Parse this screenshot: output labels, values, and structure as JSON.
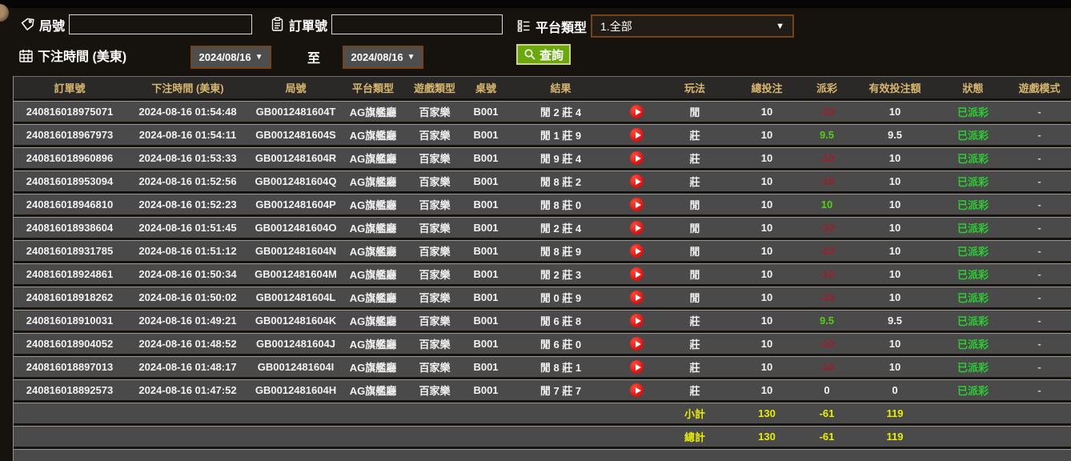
{
  "filters": {
    "round_label": "局號",
    "round_value": "",
    "order_label": "訂單號",
    "order_value": "",
    "platform_label": "平台類型",
    "platform_selected": "1.全部",
    "bet_time_label": "下注時間 (美東)",
    "date_from": "2024/08/16",
    "to_label": "至",
    "date_to": "2024/08/16",
    "search_label": "查詢"
  },
  "table": {
    "columns": [
      "訂單號",
      "下注時間 (美東)",
      "局號",
      "平台類型",
      "遊戲類型",
      "桌號",
      "結果",
      "",
      "玩法",
      "總投注",
      "派彩",
      "有效投注額",
      "狀態",
      "遊戲模式"
    ],
    "rows": [
      {
        "order": "240816018975071",
        "time": "2024-08-16 01:54:48",
        "round": "GB0012481604T",
        "platform": "AG旗艦廳",
        "game": "百家樂",
        "table_no": "B001",
        "result": "閒 2 莊 4",
        "play": "閒",
        "bet": "10",
        "payout": "-10",
        "payout_class": "neg",
        "valid": "10",
        "status": "已派彩",
        "mode": "-"
      },
      {
        "order": "240816018967973",
        "time": "2024-08-16 01:54:11",
        "round": "GB0012481604S",
        "platform": "AG旗艦廳",
        "game": "百家樂",
        "table_no": "B001",
        "result": "閒 1 莊 9",
        "play": "莊",
        "bet": "10",
        "payout": "9.5",
        "payout_class": "pos",
        "valid": "9.5",
        "status": "已派彩",
        "mode": "-"
      },
      {
        "order": "240816018960896",
        "time": "2024-08-16 01:53:33",
        "round": "GB0012481604R",
        "platform": "AG旗艦廳",
        "game": "百家樂",
        "table_no": "B001",
        "result": "閒 9 莊 4",
        "play": "莊",
        "bet": "10",
        "payout": "-10",
        "payout_class": "neg",
        "valid": "10",
        "status": "已派彩",
        "mode": "-"
      },
      {
        "order": "240816018953094",
        "time": "2024-08-16 01:52:56",
        "round": "GB0012481604Q",
        "platform": "AG旗艦廳",
        "game": "百家樂",
        "table_no": "B001",
        "result": "閒 8 莊 2",
        "play": "莊",
        "bet": "10",
        "payout": "-10",
        "payout_class": "neg",
        "valid": "10",
        "status": "已派彩",
        "mode": "-"
      },
      {
        "order": "240816018946810",
        "time": "2024-08-16 01:52:23",
        "round": "GB0012481604P",
        "platform": "AG旗艦廳",
        "game": "百家樂",
        "table_no": "B001",
        "result": "閒 8 莊 0",
        "play": "閒",
        "bet": "10",
        "payout": "10",
        "payout_class": "pos",
        "valid": "10",
        "status": "已派彩",
        "mode": "-"
      },
      {
        "order": "240816018938604",
        "time": "2024-08-16 01:51:45",
        "round": "GB0012481604O",
        "platform": "AG旗艦廳",
        "game": "百家樂",
        "table_no": "B001",
        "result": "閒 2 莊 4",
        "play": "閒",
        "bet": "10",
        "payout": "-10",
        "payout_class": "neg",
        "valid": "10",
        "status": "已派彩",
        "mode": "-"
      },
      {
        "order": "240816018931785",
        "time": "2024-08-16 01:51:12",
        "round": "GB0012481604N",
        "platform": "AG旗艦廳",
        "game": "百家樂",
        "table_no": "B001",
        "result": "閒 8 莊 9",
        "play": "閒",
        "bet": "10",
        "payout": "-10",
        "payout_class": "neg",
        "valid": "10",
        "status": "已派彩",
        "mode": "-"
      },
      {
        "order": "240816018924861",
        "time": "2024-08-16 01:50:34",
        "round": "GB0012481604M",
        "platform": "AG旗艦廳",
        "game": "百家樂",
        "table_no": "B001",
        "result": "閒 2 莊 3",
        "play": "閒",
        "bet": "10",
        "payout": "-10",
        "payout_class": "neg",
        "valid": "10",
        "status": "已派彩",
        "mode": "-"
      },
      {
        "order": "240816018918262",
        "time": "2024-08-16 01:50:02",
        "round": "GB0012481604L",
        "platform": "AG旗艦廳",
        "game": "百家樂",
        "table_no": "B001",
        "result": "閒 0 莊 9",
        "play": "閒",
        "bet": "10",
        "payout": "-10",
        "payout_class": "neg",
        "valid": "10",
        "status": "已派彩",
        "mode": "-"
      },
      {
        "order": "240816018910031",
        "time": "2024-08-16 01:49:21",
        "round": "GB0012481604K",
        "platform": "AG旗艦廳",
        "game": "百家樂",
        "table_no": "B001",
        "result": "閒 6 莊 8",
        "play": "莊",
        "bet": "10",
        "payout": "9.5",
        "payout_class": "pos",
        "valid": "9.5",
        "status": "已派彩",
        "mode": "-"
      },
      {
        "order": "240816018904052",
        "time": "2024-08-16 01:48:52",
        "round": "GB0012481604J",
        "platform": "AG旗艦廳",
        "game": "百家樂",
        "table_no": "B001",
        "result": "閒 6 莊 0",
        "play": "莊",
        "bet": "10",
        "payout": "-10",
        "payout_class": "neg",
        "valid": "10",
        "status": "已派彩",
        "mode": "-"
      },
      {
        "order": "240816018897013",
        "time": "2024-08-16 01:48:17",
        "round": "GB0012481604I",
        "platform": "AG旗艦廳",
        "game": "百家樂",
        "table_no": "B001",
        "result": "閒 8 莊 1",
        "play": "莊",
        "bet": "10",
        "payout": "-10",
        "payout_class": "neg",
        "valid": "10",
        "status": "已派彩",
        "mode": "-"
      },
      {
        "order": "240816018892573",
        "time": "2024-08-16 01:47:52",
        "round": "GB0012481604H",
        "platform": "AG旗艦廳",
        "game": "百家樂",
        "table_no": "B001",
        "result": "閒 7 莊 7",
        "play": "莊",
        "bet": "10",
        "payout": "0",
        "payout_class": "zero",
        "valid": "0",
        "status": "已派彩",
        "mode": "-"
      }
    ],
    "subtotal": {
      "label": "小計",
      "bet": "130",
      "payout": "-61",
      "valid": "119"
    },
    "total": {
      "label": "總計",
      "bet": "130",
      "payout": "-61",
      "valid": "119"
    }
  },
  "colors": {
    "header_text": "#d7b66e",
    "row_background": "#4a4a4a",
    "payout_positive": "#55cf12",
    "payout_negative": "#9e1e2d",
    "status_paid_green": "#2ccc33",
    "summary_yellow": "#e9ee00",
    "search_button_green": "#69a90c",
    "select_border_brown": "#74431a",
    "replay_red": "#dd0f0f"
  }
}
